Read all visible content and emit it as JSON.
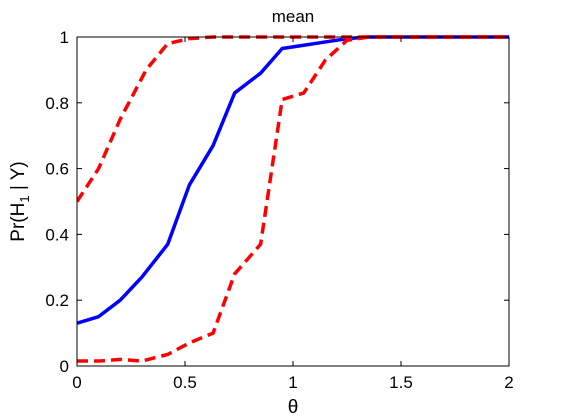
{
  "chart_data": {
    "type": "line",
    "title": "mean",
    "xlabel": "θ",
    "ylabel_main": "Pr(H",
    "ylabel_sub": "1",
    "ylabel_rest": " | Y)",
    "xlim": [
      0,
      2
    ],
    "ylim": [
      0,
      1
    ],
    "xticks": [
      0,
      0.5,
      1,
      1.5,
      2
    ],
    "yticks": [
      0,
      0.2,
      0.4,
      0.6,
      0.8,
      1
    ],
    "xtick_labels": [
      "0",
      "0.5",
      "1",
      "1.5",
      "2"
    ],
    "ytick_labels": [
      "0",
      "0.2",
      "0.4",
      "0.6",
      "0.8",
      "1"
    ],
    "grid": false,
    "series": [
      {
        "style": "solid",
        "color": "#0000ff",
        "x": [
          0,
          0.1,
          0.2,
          0.3,
          0.42,
          0.52,
          0.63,
          0.73,
          0.85,
          0.95,
          1.05,
          1.15,
          1.25,
          1.35,
          1.5,
          2.0
        ],
        "y": [
          0.13,
          0.15,
          0.2,
          0.27,
          0.37,
          0.55,
          0.67,
          0.83,
          0.89,
          0.965,
          0.975,
          0.985,
          0.995,
          1.0,
          1.0,
          1.0
        ]
      },
      {
        "style": "dashed",
        "color": "#ff0000",
        "x": [
          0,
          0.1,
          0.2,
          0.32,
          0.42,
          0.52,
          0.63,
          0.73,
          0.85,
          0.95,
          1.05,
          1.15,
          1.25,
          1.35,
          1.5,
          2.0
        ],
        "y": [
          0.5,
          0.6,
          0.75,
          0.9,
          0.98,
          0.995,
          1.0,
          1.0,
          1.0,
          1.0,
          1.0,
          1.0,
          1.0,
          1.0,
          1.0,
          1.0
        ]
      },
      {
        "style": "dashed",
        "color": "#ff0000",
        "x": [
          0,
          0.1,
          0.2,
          0.3,
          0.42,
          0.52,
          0.63,
          0.73,
          0.85,
          0.95,
          1.05,
          1.15,
          1.25,
          1.35,
          1.5,
          2.0
        ],
        "y": [
          0.015,
          0.015,
          0.02,
          0.015,
          0.035,
          0.07,
          0.1,
          0.28,
          0.37,
          0.81,
          0.83,
          0.93,
          0.99,
          1.0,
          1.0,
          1.0
        ]
      }
    ]
  }
}
